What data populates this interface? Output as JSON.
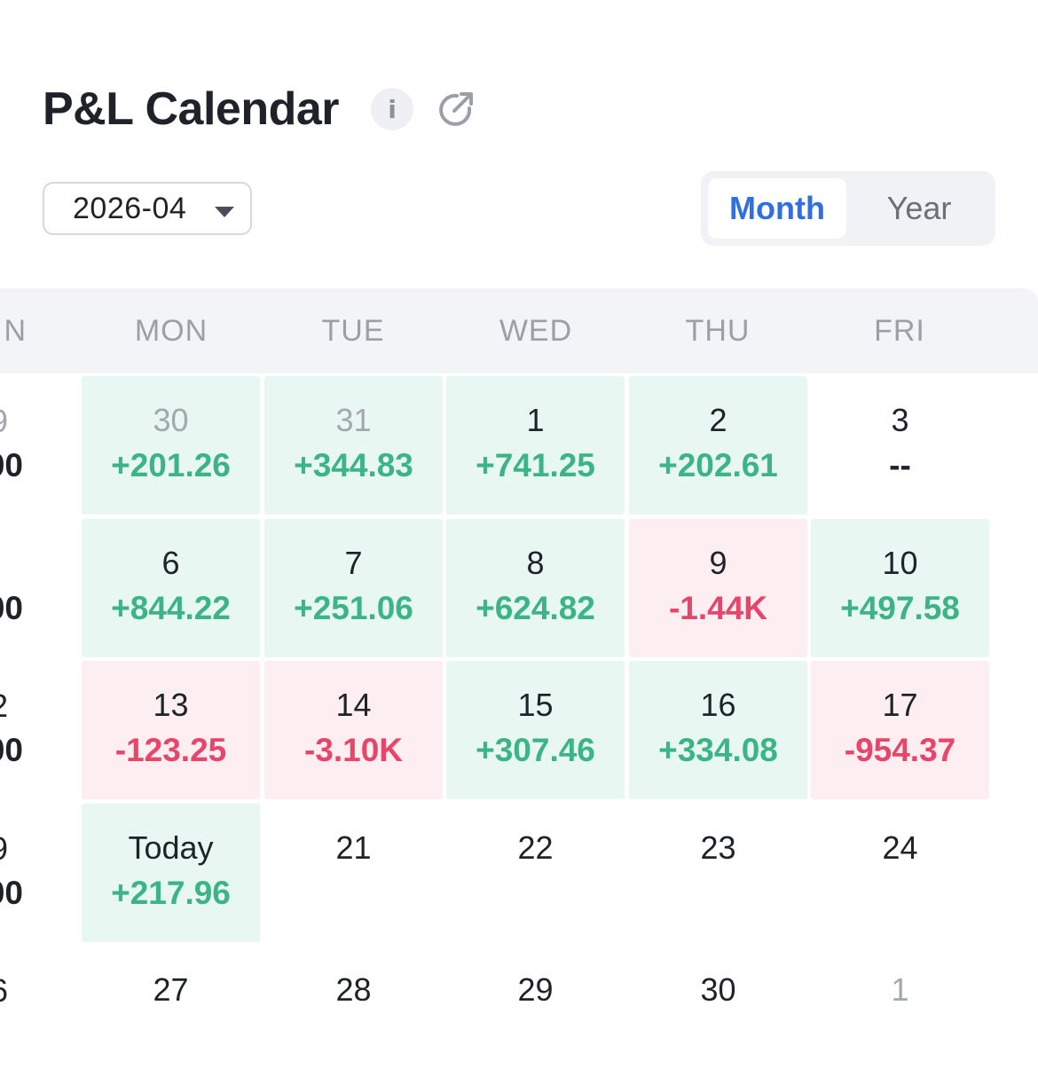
{
  "header": {
    "title": "P&L Calendar",
    "info_icon_glyph": "i"
  },
  "controls": {
    "month_value": "2026-04",
    "view_options": {
      "month": "Month",
      "year": "Year"
    },
    "active_view": "Month"
  },
  "weekdays": [
    "N",
    "MON",
    "TUE",
    "WED",
    "THU",
    "FRI"
  ],
  "edge_column": [
    {
      "day": "9",
      "pnl": "00",
      "muted": true
    },
    {
      "day": "",
      "pnl": "00"
    },
    {
      "day": "2",
      "pnl": "00"
    },
    {
      "day": "9",
      "pnl": "00"
    },
    {
      "day": "6",
      "pnl": ""
    }
  ],
  "weeks": [
    [
      {
        "day": "30",
        "pnl": "+201.26",
        "state": "pos",
        "muted": true
      },
      {
        "day": "31",
        "pnl": "+344.83",
        "state": "pos",
        "muted": true
      },
      {
        "day": "1",
        "pnl": "+741.25",
        "state": "pos"
      },
      {
        "day": "2",
        "pnl": "+202.61",
        "state": "pos"
      },
      {
        "day": "3",
        "pnl": "--",
        "state": "none"
      }
    ],
    [
      {
        "day": "6",
        "pnl": "+844.22",
        "state": "pos"
      },
      {
        "day": "7",
        "pnl": "+251.06",
        "state": "pos"
      },
      {
        "day": "8",
        "pnl": "+624.82",
        "state": "pos"
      },
      {
        "day": "9",
        "pnl": "-1.44K",
        "state": "neg"
      },
      {
        "day": "10",
        "pnl": "+497.58",
        "state": "pos"
      }
    ],
    [
      {
        "day": "13",
        "pnl": "-123.25",
        "state": "neg"
      },
      {
        "day": "14",
        "pnl": "-3.10K",
        "state": "neg"
      },
      {
        "day": "15",
        "pnl": "+307.46",
        "state": "pos"
      },
      {
        "day": "16",
        "pnl": "+334.08",
        "state": "pos"
      },
      {
        "day": "17",
        "pnl": "-954.37",
        "state": "neg"
      }
    ],
    [
      {
        "day": "Today",
        "pnl": "+217.96",
        "state": "pos"
      },
      {
        "day": "21",
        "pnl": "",
        "state": "empty"
      },
      {
        "day": "22",
        "pnl": "",
        "state": "empty"
      },
      {
        "day": "23",
        "pnl": "",
        "state": "empty"
      },
      {
        "day": "24",
        "pnl": "",
        "state": "empty"
      }
    ],
    [
      {
        "day": "27",
        "pnl": "",
        "state": "empty"
      },
      {
        "day": "28",
        "pnl": "",
        "state": "empty"
      },
      {
        "day": "29",
        "pnl": "",
        "state": "empty"
      },
      {
        "day": "30",
        "pnl": "",
        "state": "empty"
      },
      {
        "day": "1",
        "pnl": "",
        "state": "empty",
        "muted": true
      }
    ]
  ],
  "colors": {
    "positive_text": "#3bb486",
    "negative_text": "#e8456a",
    "positive_bg": "#e8f7f1",
    "negative_bg": "#fdeef1",
    "accent": "#2f6fe4"
  },
  "icons": {
    "info": "info-icon",
    "share": "external-link-icon",
    "dropdown": "caret-down-icon"
  }
}
